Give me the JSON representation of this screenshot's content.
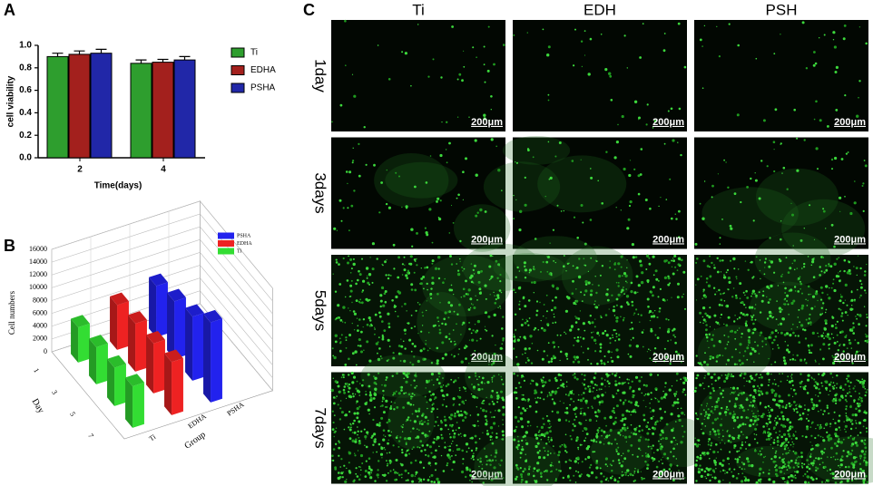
{
  "chart_data": [
    {
      "type": "bar",
      "panel_label": "A",
      "y_label": "cell viability",
      "x_label": "Time(days)",
      "categories": [
        "2",
        "4"
      ],
      "series": [
        {
          "name": "Ti",
          "color": "#2e9e2e",
          "values": [
            0.9,
            0.84
          ],
          "errors": [
            0.03,
            0.03
          ]
        },
        {
          "name": "EDHA",
          "color": "#a3201d",
          "values": [
            0.92,
            0.85
          ],
          "errors": [
            0.03,
            0.025
          ]
        },
        {
          "name": "PSHA",
          "color": "#2127a8",
          "values": [
            0.93,
            0.87
          ],
          "errors": [
            0.035,
            0.03
          ]
        }
      ],
      "ylim": [
        0,
        1.0
      ],
      "yticks": [
        {
          "value": 0,
          "label": "0.0"
        },
        {
          "value": 0.2,
          "label": "0.2"
        },
        {
          "value": 0.4,
          "label": "0.4"
        },
        {
          "value": 0.6,
          "label": "0.6"
        },
        {
          "value": 0.8,
          "label": "0.8"
        },
        {
          "value": 1.0,
          "label": "1.0"
        }
      ]
    },
    {
      "type": "bar3d",
      "panel_label": "B",
      "z_label": "Cell numbers",
      "x_label": "Day",
      "y_label": "Group",
      "categories": [
        "1",
        "3",
        "5",
        "7"
      ],
      "series": [
        {
          "name": "Ti",
          "color": "#33dd33",
          "values": [
            5500,
            5800,
            6000,
            6500
          ]
        },
        {
          "name": "EDHA",
          "color": "#ee2222",
          "values": [
            7000,
            7500,
            7800,
            8300
          ]
        },
        {
          "name": "PSHA",
          "color": "#2222ee",
          "values": [
            8000,
            9000,
            10000,
            12500
          ]
        }
      ],
      "zlim": [
        0,
        16000
      ],
      "zticks": [
        0,
        2000,
        4000,
        6000,
        8000,
        10000,
        12000,
        14000,
        16000
      ],
      "grid": true
    }
  ],
  "image_grid": {
    "panel_label": "C",
    "columns": [
      "Ti",
      "EDH",
      "PSH"
    ],
    "rows": [
      "1day",
      "3days",
      "5days",
      "7days"
    ],
    "scale_bar": "200μm"
  }
}
